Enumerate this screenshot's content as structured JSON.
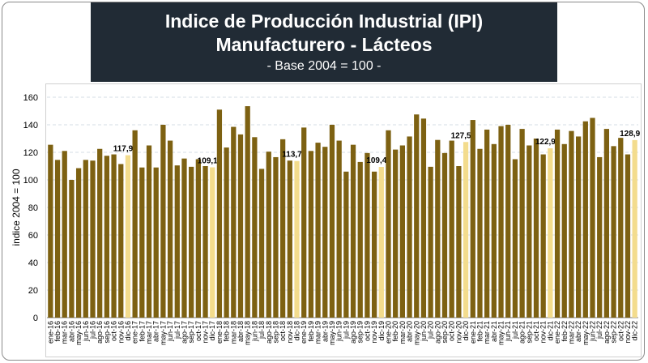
{
  "chart_data": {
    "type": "bar",
    "title": "Indice de Producción Industrial (IPI) Manufacturero - Lácteos",
    "subtitle": "- Base 2004 = 100 -",
    "xlabel": "",
    "ylabel": "indice 2004 = 100",
    "ylim": [
      0,
      160
    ],
    "yticks": [
      0,
      20,
      40,
      60,
      80,
      100,
      120,
      140,
      160
    ],
    "grid": true,
    "colors": {
      "bar": "#7d6112",
      "highlight": "#f3dc8d",
      "grid": "#d6dce6",
      "title_bg": "#212b35"
    },
    "categories": [
      "ene-16",
      "feb-16",
      "mar-16",
      "abr-16",
      "may-16",
      "jun-16",
      "jul-16",
      "ago-16",
      "sep-16",
      "oct-16",
      "nov-16",
      "dic-16",
      "ene-17",
      "feb-17",
      "mar-17",
      "abr-17",
      "may-17",
      "jun-17",
      "jul-17",
      "ago-17",
      "sep-17",
      "oct-17",
      "nov-17",
      "dic-17",
      "ene-18",
      "feb-18",
      "mar-18",
      "abr-18",
      "may-18",
      "jun-18",
      "jul-18",
      "ago-18",
      "sep-18",
      "oct-18",
      "nov-18",
      "dic-18",
      "ene-19",
      "feb-19",
      "mar-19",
      "abr-19",
      "may-19",
      "jun-19",
      "jul-19",
      "ago-19",
      "sep-19",
      "oct-19",
      "nov-19",
      "dic-19",
      "ene-20",
      "feb-20",
      "mar-20",
      "abr-20",
      "may-20",
      "jun-20",
      "jul-20",
      "ago-20",
      "sep-20",
      "oct-20",
      "nov-20",
      "dic-20",
      "ene-21",
      "feb-21",
      "mar-21",
      "abr-21",
      "may-21",
      "jun-21",
      "jul-21",
      "ago-21",
      "sep-21",
      "oct-21",
      "nov-21",
      "dic-21",
      "ene-22",
      "feb-22",
      "mar-22",
      "abr-22",
      "may-22",
      "jun-22",
      "jul-22",
      "ago-22",
      "sep-22",
      "oct-22",
      "nov-22",
      "dic-22"
    ],
    "values": [
      125.5,
      114.5,
      121,
      100,
      108.5,
      114.5,
      114,
      122.5,
      117.5,
      118.5,
      111.5,
      117.9,
      136,
      109,
      125,
      109,
      140,
      128.5,
      110.5,
      115.5,
      109.5,
      115,
      110,
      109.1,
      151,
      123.5,
      138.5,
      133,
      153.5,
      131,
      108,
      120.5,
      116.5,
      129.5,
      114,
      113.7,
      138,
      121,
      127,
      124,
      140,
      128.5,
      106,
      125.5,
      113,
      119.5,
      106,
      109.4,
      136,
      122,
      125,
      131.5,
      147.5,
      144.5,
      109.5,
      129,
      119.5,
      128.5,
      110,
      127.5,
      143.5,
      122.5,
      136.5,
      126,
      139,
      140,
      115,
      137,
      125,
      130,
      118.5,
      122.9,
      136.5,
      126,
      135.5,
      131.5,
      142.5,
      145,
      116.5,
      137,
      124.5,
      130.5,
      118.5,
      128.9
    ],
    "highlighted": [
      "dic-16",
      "dic-17",
      "dic-18",
      "dic-19",
      "dic-20",
      "dic-21",
      "dic-22"
    ],
    "annotations": [
      {
        "category": "dic-16",
        "label": "117,9"
      },
      {
        "category": "dic-17",
        "label": "109,1"
      },
      {
        "category": "dic-18",
        "label": "113,7"
      },
      {
        "category": "dic-19",
        "label": "109,4"
      },
      {
        "category": "dic-20",
        "label": "127,5"
      },
      {
        "category": "dic-21",
        "label": "122,9"
      },
      {
        "category": "dic-22",
        "label": "128,9"
      }
    ]
  }
}
